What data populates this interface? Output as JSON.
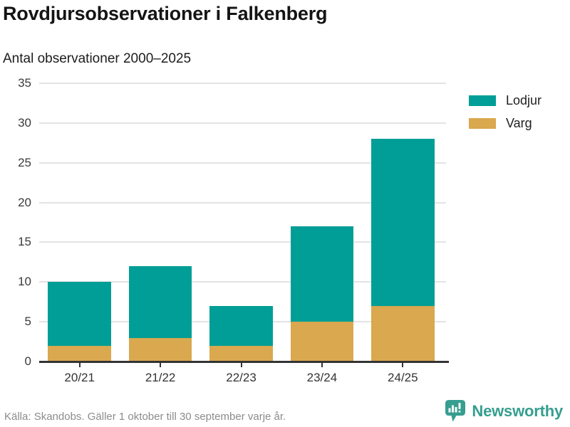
{
  "header": {
    "title": "Rovdjursobservationer i Falkenberg",
    "subtitle": "Antal observationer 2000–2025"
  },
  "chart_data": {
    "type": "bar",
    "stacked": true,
    "title": "Rovdjursobservationer i Falkenberg",
    "subtitle": "Antal observationer 2000–2025",
    "categories": [
      "20/21",
      "21/22",
      "22/23",
      "23/24",
      "24/25"
    ],
    "series": [
      {
        "name": "Lodjur",
        "color": "#009e96",
        "values": [
          8,
          9,
          5,
          12,
          21
        ]
      },
      {
        "name": "Varg",
        "color": "#d9a84f",
        "values": [
          2,
          3,
          2,
          5,
          7
        ]
      }
    ],
    "stack_bottom_series": "Varg",
    "ylim": [
      0,
      35
    ],
    "yticks": [
      0,
      5,
      10,
      15,
      20,
      25,
      30,
      35
    ],
    "grid": true,
    "legend_position": "right-top"
  },
  "footer": {
    "source": "Källa: Skandobs. Gäller 1 oktober till 30 september varje år.",
    "brand": "Newsworthy"
  },
  "icons": {
    "brand_logo": "newsworthy-speech-bubble-barchart-icon"
  },
  "colors": {
    "lodjur": "#009e96",
    "varg": "#d9a84f",
    "brand_teal": "#359e8f",
    "gridline": "#e3e3e3",
    "axis": "#333333",
    "muted_text": "#8c8c8c"
  }
}
